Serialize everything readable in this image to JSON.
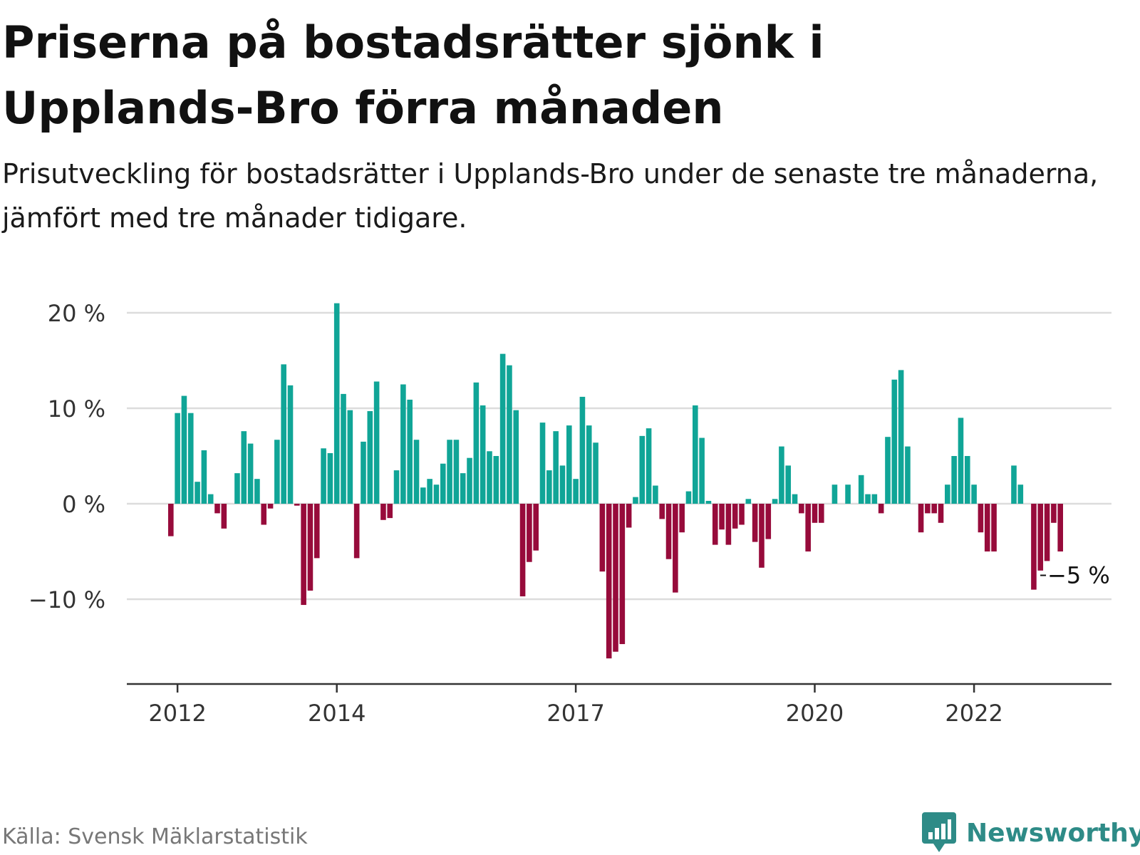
{
  "header": {
    "title": "Priserna på bostadsrätter sjönk i Upplands-Bro förra månaden",
    "subtitle": "Prisutveckling för bostadsrätter i Upplands-Bro under de senaste tre månaderna, jämfört med tre månader tidigare."
  },
  "footer": {
    "source": "Källa: Svensk Mäklarstatistik",
    "brand": "Newsworthy"
  },
  "colors": {
    "positive": "#10a597",
    "negative": "#970b3b",
    "grid": "#dcdcdc",
    "axis": "#333333",
    "brand": "#2e8b87"
  },
  "chart_data": {
    "type": "bar",
    "x_start": "2011-12",
    "x_interval": "month",
    "values": [
      -3.4,
      9.5,
      11.3,
      9.5,
      2.3,
      5.6,
      1.0,
      -1.0,
      -2.6,
      0.0,
      3.2,
      7.6,
      6.3,
      2.6,
      -2.2,
      -0.5,
      6.7,
      14.6,
      12.4,
      -0.2,
      -10.6,
      -9.1,
      -5.7,
      5.8,
      5.3,
      21.0,
      11.5,
      9.8,
      -5.7,
      6.5,
      9.7,
      12.8,
      -1.7,
      -1.5,
      3.5,
      12.5,
      10.9,
      6.7,
      1.7,
      2.6,
      2.0,
      4.2,
      6.7,
      6.7,
      3.2,
      4.8,
      12.7,
      10.3,
      5.5,
      5.0,
      15.7,
      14.5,
      9.8,
      -9.7,
      -6.1,
      -4.9,
      8.5,
      3.5,
      7.6,
      4.0,
      8.2,
      2.6,
      11.2,
      8.2,
      6.4,
      -7.1,
      -16.2,
      -15.5,
      -14.7,
      -2.5,
      0.7,
      7.1,
      7.9,
      1.9,
      -1.6,
      -5.8,
      -9.3,
      -3.0,
      1.3,
      10.3,
      6.9,
      0.3,
      -4.3,
      -2.7,
      -4.3,
      -2.6,
      -2.2,
      0.5,
      -4.0,
      -6.7,
      -3.7,
      0.5,
      6.0,
      4.0,
      1.0,
      -1.0,
      -5.0,
      -2.0,
      -2.0,
      0.0,
      2.0,
      0.0,
      2.0,
      0.0,
      3.0,
      1.0,
      1.0,
      -1.0,
      7.0,
      13.0,
      14.0,
      6.0,
      0.0,
      -3.0,
      -1.0,
      -1.0,
      -2.0,
      2.0,
      5.0,
      9.0,
      5.0,
      2.0,
      -3.0,
      -5.0,
      -5.0,
      0.0,
      0.0,
      4.0,
      2.0,
      0.0,
      -9.0,
      -7.0,
      -6.0,
      -2.0,
      -5.0
    ],
    "x_ticks": [
      {
        "label": "2012",
        "index": 1
      },
      {
        "label": "2014",
        "index": 25
      },
      {
        "label": "2017",
        "index": 61
      },
      {
        "label": "2020",
        "index": 97
      },
      {
        "label": "2022",
        "index": 121
      }
    ],
    "y_ticks": [
      {
        "value": 20,
        "label": "20 %"
      },
      {
        "value": 10,
        "label": "10 %"
      },
      {
        "value": 0,
        "label": "0 %"
      },
      {
        "value": -10,
        "label": "−10 %"
      }
    ],
    "ylim": [
      -18.8,
      21.5
    ],
    "grid": true,
    "annotation": {
      "label": "−5 %",
      "index": 131,
      "value": -7.5
    }
  }
}
